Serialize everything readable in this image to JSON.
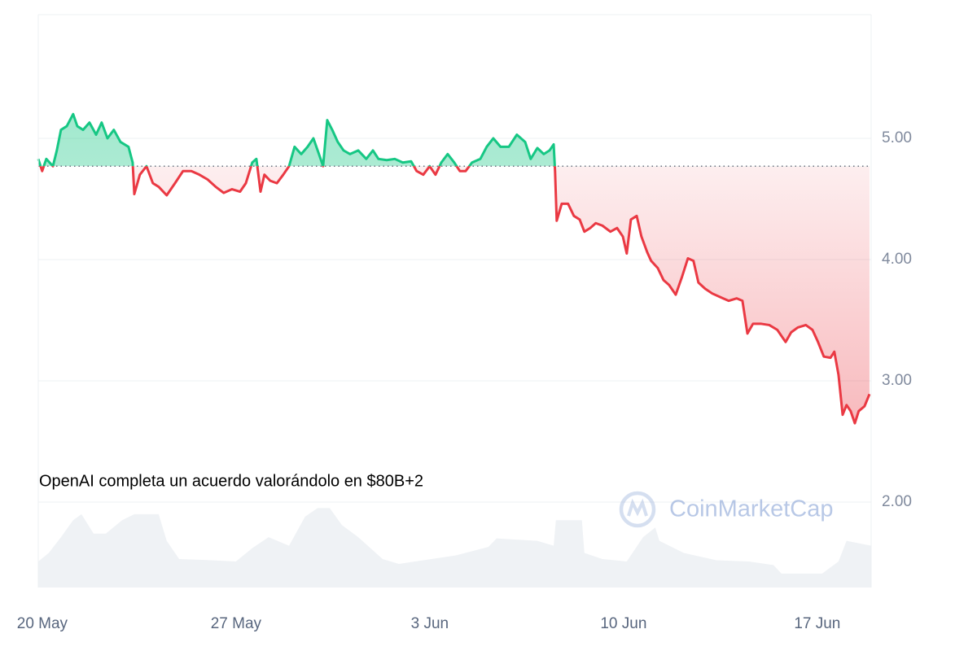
{
  "chart_data": {
    "type": "line",
    "annotation": "OpenAI completa un acuerdo valorándolo en $80B+2",
    "watermark": "CoinMarketCap",
    "xlim": [
      -0.38,
      29.71
    ],
    "xticks": [
      {
        "value": 0,
        "label": "20 May"
      },
      {
        "value": 7,
        "label": "27 May"
      },
      {
        "value": 14,
        "label": "3 Jun"
      },
      {
        "value": 21,
        "label": "10 Jun"
      },
      {
        "value": 28,
        "label": "17 Jun"
      }
    ],
    "ylim": [
      1.295,
      6.02
    ],
    "yticks": [
      {
        "value": 2,
        "label": "2.00"
      },
      {
        "value": 3,
        "label": "3.00"
      },
      {
        "value": 4,
        "label": "4.00"
      },
      {
        "value": 5,
        "label": "5.00"
      }
    ],
    "grid": true,
    "baseline": 4.77,
    "up_color": "#16c784",
    "down_color": "#ea3943",
    "x": [
      -0.38,
      -0.24,
      -0.09,
      0.15,
      0.29,
      0.44,
      0.65,
      0.88,
      1.03,
      1.24,
      1.47,
      1.71,
      1.91,
      2.12,
      2.35,
      2.59,
      2.88,
      3.03,
      3.09,
      3.29,
      3.53,
      3.76,
      3.97,
      4.26,
      4.56,
      4.85,
      5.15,
      5.44,
      5.74,
      6.03,
      6.32,
      6.62,
      6.91,
      7.12,
      7.35,
      7.5,
      7.65,
      7.79,
      8,
      8.24,
      8.47,
      8.68,
      8.88,
      9.12,
      9.35,
      9.56,
      9.76,
      9.91,
      10.06,
      10.24,
      10.44,
      10.65,
      10.88,
      11.18,
      11.47,
      11.71,
      11.91,
      12.21,
      12.5,
      12.79,
      13.09,
      13.29,
      13.53,
      13.76,
      13.97,
      14.18,
      14.41,
      14.65,
      14.85,
      15.06,
      15.29,
      15.59,
      15.82,
      16.06,
      16.32,
      16.62,
      16.91,
      17.21,
      17.41,
      17.65,
      17.88,
      18.09,
      18.24,
      18.29,
      18.35,
      18.53,
      18.76,
      18.97,
      19.18,
      19.35,
      19.56,
      19.76,
      20,
      20.29,
      20.53,
      20.74,
      20.88,
      21.03,
      21.24,
      21.41,
      21.62,
      21.76,
      22,
      22.21,
      22.41,
      22.65,
      22.88,
      23.09,
      23.29,
      23.47,
      23.71,
      23.97,
      24.26,
      24.56,
      24.85,
      25.06,
      25.24,
      25.44,
      25.74,
      26.03,
      26.32,
      26.62,
      26.82,
      27.06,
      27.35,
      27.59,
      27.79,
      28,
      28.24,
      28.38,
      28.53,
      28.68,
      28.82,
      28.97,
      29.12,
      29.26,
      29.47,
      29.65
    ],
    "values": [
      4.83,
      4.73,
      4.83,
      4.77,
      4.9,
      5.07,
      5.1,
      5.2,
      5.1,
      5.07,
      5.13,
      5.03,
      5.13,
      5,
      5.07,
      4.97,
      4.93,
      4.8,
      4.54,
      4.7,
      4.77,
      4.63,
      4.6,
      4.53,
      4.63,
      4.73,
      4.73,
      4.7,
      4.66,
      4.6,
      4.55,
      4.58,
      4.56,
      4.63,
      4.8,
      4.83,
      4.56,
      4.7,
      4.65,
      4.63,
      4.7,
      4.77,
      4.93,
      4.87,
      4.93,
      5,
      4.87,
      4.77,
      5.15,
      5.07,
      4.97,
      4.9,
      4.87,
      4.9,
      4.83,
      4.9,
      4.83,
      4.82,
      4.83,
      4.8,
      4.81,
      4.73,
      4.7,
      4.77,
      4.7,
      4.8,
      4.87,
      4.8,
      4.73,
      4.73,
      4.8,
      4.83,
      4.93,
      5,
      4.93,
      4.93,
      5.03,
      4.97,
      4.83,
      4.92,
      4.87,
      4.9,
      4.95,
      4.73,
      4.32,
      4.46,
      4.46,
      4.36,
      4.33,
      4.23,
      4.26,
      4.3,
      4.28,
      4.23,
      4.26,
      4.19,
      4.05,
      4.33,
      4.36,
      4.19,
      4.06,
      3.99,
      3.93,
      3.83,
      3.79,
      3.71,
      3.86,
      4.01,
      3.99,
      3.81,
      3.76,
      3.72,
      3.69,
      3.66,
      3.68,
      3.66,
      3.39,
      3.47,
      3.47,
      3.46,
      3.42,
      3.32,
      3.4,
      3.44,
      3.46,
      3.42,
      3.32,
      3.2,
      3.19,
      3.24,
      3.05,
      2.72,
      2.8,
      2.75,
      2.65,
      2.75,
      2.79,
      2.89
    ],
    "volume": {
      "color": "#eff2f5",
      "x": [
        -0.38,
        0,
        0.44,
        0.88,
        1.18,
        1.62,
        2.06,
        2.65,
        3.09,
        3.97,
        4.26,
        4.71,
        5.88,
        6.76,
        7.35,
        7.94,
        8.68,
        9.26,
        9.71,
        10.15,
        10.59,
        11.18,
        12.06,
        12.65,
        13.53,
        14.71,
        15.88,
        16.18,
        17.65,
        18.24,
        18.32,
        19.26,
        19.35,
        20,
        20.88,
        21.47,
        21.91,
        22.06,
        22.94,
        24.12,
        25.29,
        26.18,
        26.47,
        27.94,
        28.53,
        28.82,
        29.71
      ],
      "values": [
        1.51,
        1.58,
        1.71,
        1.85,
        1.9,
        1.74,
        1.74,
        1.85,
        1.9,
        1.9,
        1.68,
        1.53,
        1.52,
        1.51,
        1.62,
        1.71,
        1.64,
        1.88,
        1.95,
        1.95,
        1.81,
        1.71,
        1.53,
        1.49,
        1.52,
        1.56,
        1.63,
        1.7,
        1.68,
        1.64,
        1.85,
        1.85,
        1.58,
        1.53,
        1.51,
        1.71,
        1.79,
        1.68,
        1.58,
        1.52,
        1.51,
        1.48,
        1.41,
        1.41,
        1.51,
        1.68,
        1.64
      ]
    }
  }
}
